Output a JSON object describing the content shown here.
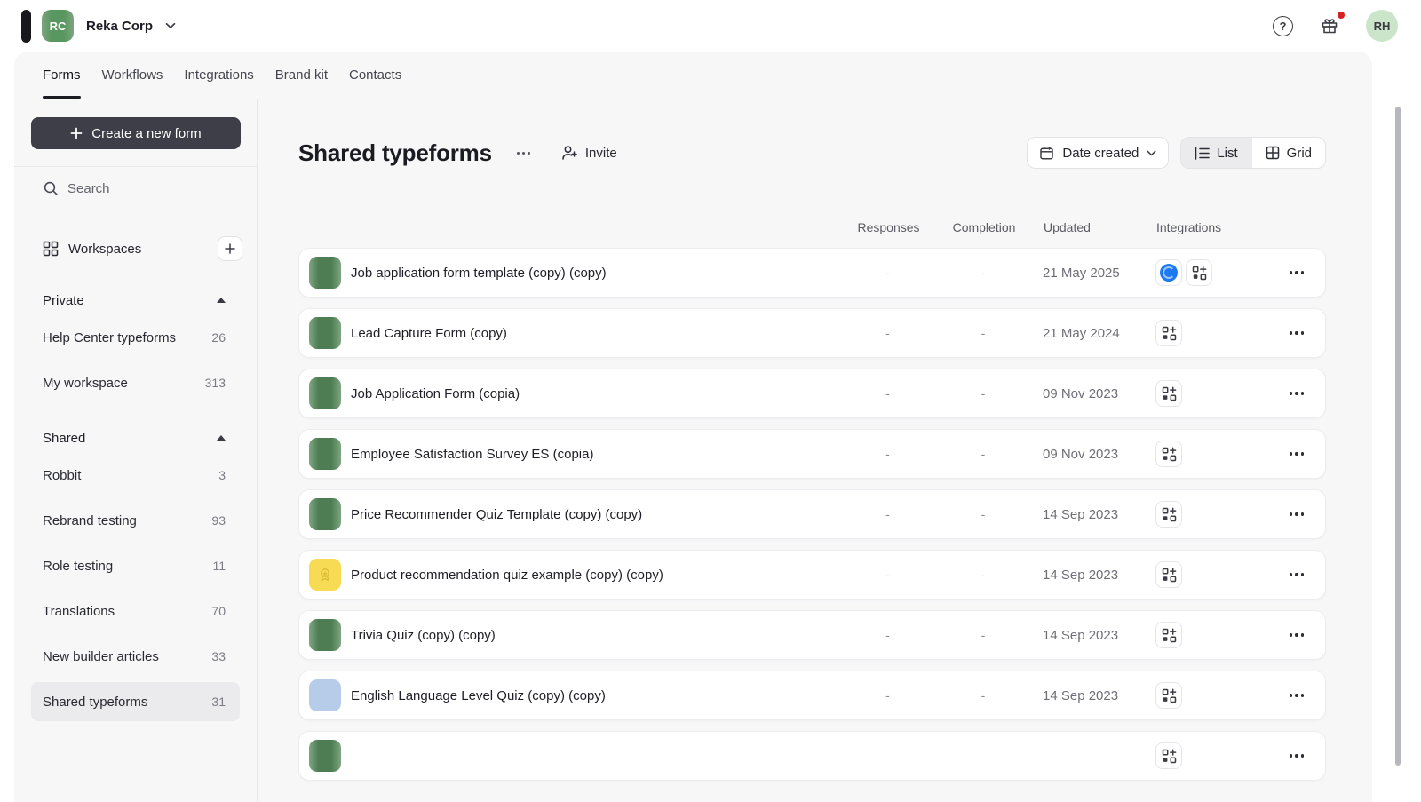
{
  "colors": {
    "thumb_green_core": "#4e7d53",
    "thumb_green_edge": "#7ea581",
    "org_avatar_green": "#58975f",
    "user_avatar_green": "#cbe5cb",
    "thumb_yellow": "#f7db55",
    "thumb_blue": "#b7cce8",
    "integration_blue": "#1b7af2",
    "notification_red": "#d62222"
  },
  "topbar": {
    "org_initials": "RC",
    "org_name": "Reka Corp",
    "user_initials": "RH",
    "help_glyph": "?"
  },
  "tabs": [
    {
      "label": "Forms",
      "active": true
    },
    {
      "label": "Workflows",
      "active": false
    },
    {
      "label": "Integrations",
      "active": false
    },
    {
      "label": "Brand kit",
      "active": false
    },
    {
      "label": "Contacts",
      "active": false
    }
  ],
  "sidebar": {
    "create_button_label": "Create a new form",
    "search_label": "Search",
    "workspaces_label": "Workspaces",
    "sections": [
      {
        "label": "Private",
        "items": [
          {
            "label": "Help Center typeforms",
            "count": "26",
            "selected": false
          },
          {
            "label": "My workspace",
            "count": "313",
            "selected": false
          }
        ]
      },
      {
        "label": "Shared",
        "items": [
          {
            "label": "Robbit",
            "count": "3",
            "selected": false
          },
          {
            "label": "Rebrand testing",
            "count": "93",
            "selected": false
          },
          {
            "label": "Role testing",
            "count": "11",
            "selected": false
          },
          {
            "label": "Translations",
            "count": "70",
            "selected": false
          },
          {
            "label": "New builder articles",
            "count": "33",
            "selected": false
          },
          {
            "label": "Shared typeforms",
            "count": "31",
            "selected": true
          }
        ]
      }
    ]
  },
  "main": {
    "title": "Shared typeforms",
    "invite_label": "Invite",
    "sort_label": "Date created",
    "view_toggle": {
      "list_label": "List",
      "grid_label": "Grid",
      "active": "list"
    },
    "columns": {
      "responses": "Responses",
      "completion": "Completion",
      "updated": "Updated",
      "integrations": "Integrations"
    },
    "rows": [
      {
        "name": "Job application form template (copy) (copy)",
        "thumb": "green",
        "responses": "-",
        "completion": "-",
        "updated": "21 May 2025",
        "integrations": [
          "circle-blue",
          "add-integration"
        ]
      },
      {
        "name": "Lead Capture Form (copy)",
        "thumb": "green",
        "responses": "-",
        "completion": "-",
        "updated": "21 May 2024",
        "integrations": [
          "add-integration"
        ]
      },
      {
        "name": "Job Application Form (copia)",
        "thumb": "green",
        "responses": "-",
        "completion": "-",
        "updated": "09 Nov 2023",
        "integrations": [
          "add-integration"
        ]
      },
      {
        "name": "Employee Satisfaction Survey ES (copia)",
        "thumb": "green",
        "responses": "-",
        "completion": "-",
        "updated": "09 Nov 2023",
        "integrations": [
          "add-integration"
        ]
      },
      {
        "name": "Price Recommender Quiz Template (copy) (copy)",
        "thumb": "green",
        "responses": "-",
        "completion": "-",
        "updated": "14 Sep 2023",
        "integrations": [
          "add-integration"
        ]
      },
      {
        "name": "Product recommendation quiz example (copy) (copy)",
        "thumb": "yellow",
        "responses": "-",
        "completion": "-",
        "updated": "14 Sep 2023",
        "integrations": [
          "add-integration"
        ]
      },
      {
        "name": "Trivia Quiz (copy) (copy)",
        "thumb": "green",
        "responses": "-",
        "completion": "-",
        "updated": "14 Sep 2023",
        "integrations": [
          "add-integration"
        ]
      },
      {
        "name": "English Language Level Quiz (copy) (copy)",
        "thumb": "blue",
        "responses": "-",
        "completion": "-",
        "updated": "14 Sep 2023",
        "integrations": [
          "add-integration"
        ]
      },
      {
        "name": "",
        "thumb": "green",
        "responses": "",
        "completion": "",
        "updated": "",
        "integrations": [
          "add-integration"
        ]
      }
    ]
  }
}
